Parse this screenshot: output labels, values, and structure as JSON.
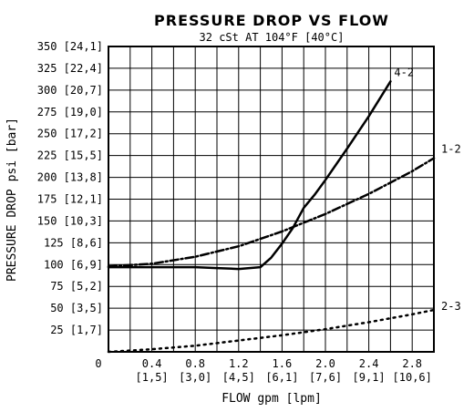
{
  "chart_data": {
    "type": "line",
    "title": "PRESSURE DROP VS FLOW",
    "subtitle": "32 cSt AT 104°F [40°C]",
    "xlabel": "FLOW gpm [lpm]",
    "ylabel": "PRESSURE DROP psi [bar]",
    "xlim": [
      0,
      3.0
    ],
    "ylim": [
      0,
      350
    ],
    "grid": true,
    "x_ticks": [
      {
        "value": 0.4,
        "label": "0.4"
      },
      {
        "value": 0.8,
        "label": "0.8"
      },
      {
        "value": 1.2,
        "label": "1.2"
      },
      {
        "value": 1.6,
        "label": "1.6"
      },
      {
        "value": 2.0,
        "label": "2.0"
      },
      {
        "value": 2.4,
        "label": "2.4"
      },
      {
        "value": 2.8,
        "label": "2.8"
      }
    ],
    "x_origin_label": "0",
    "x_secondary_ticks": [
      {
        "value": 0.4,
        "label": "[1,5]"
      },
      {
        "value": 0.8,
        "label": "[3,0]"
      },
      {
        "value": 1.2,
        "label": "[4,5]"
      },
      {
        "value": 1.6,
        "label": "[6,1]"
      },
      {
        "value": 2.0,
        "label": "[7,6]"
      },
      {
        "value": 2.4,
        "label": "[9,1]"
      },
      {
        "value": 2.8,
        "label": "[10,6]"
      }
    ],
    "y_ticks": [
      {
        "value": 25,
        "label": "25 [1,7]"
      },
      {
        "value": 50,
        "label": "50 [3,5]"
      },
      {
        "value": 75,
        "label": "75 [5,2]"
      },
      {
        "value": 100,
        "label": "100 [6,9]"
      },
      {
        "value": 125,
        "label": "125 [8,6]"
      },
      {
        "value": 150,
        "label": "150 [10,3]"
      },
      {
        "value": 175,
        "label": "175 [12,1]"
      },
      {
        "value": 200,
        "label": "200 [13,8]"
      },
      {
        "value": 225,
        "label": "225 [15,5]"
      },
      {
        "value": 250,
        "label": "250 [17,2]"
      },
      {
        "value": 275,
        "label": "275 [19,0]"
      },
      {
        "value": 300,
        "label": "300 [20,7]"
      },
      {
        "value": 325,
        "label": "325 [22,4]"
      },
      {
        "value": 350,
        "label": "350 [24,1]"
      }
    ],
    "series": [
      {
        "name": "4-2",
        "style": "solid",
        "x": [
          0.0,
          0.4,
          0.8,
          1.0,
          1.2,
          1.4,
          1.5,
          1.6,
          1.7,
          1.8,
          1.9,
          2.0,
          2.2,
          2.4,
          2.6
        ],
        "y": [
          97,
          97,
          97,
          96,
          95,
          97,
          108,
          124,
          142,
          165,
          180,
          197,
          233,
          270,
          310
        ]
      },
      {
        "name": "1-2",
        "style": "dashdot",
        "x": [
          0.0,
          0.4,
          0.8,
          1.2,
          1.6,
          2.0,
          2.4,
          2.8,
          3.0
        ],
        "y": [
          98,
          101,
          109,
          121,
          138,
          158,
          181,
          207,
          222
        ]
      },
      {
        "name": "2-3",
        "style": "dotted",
        "x": [
          0.0,
          0.4,
          0.8,
          1.2,
          1.6,
          2.0,
          2.4,
          2.8,
          3.0
        ],
        "y": [
          0,
          3,
          7,
          13,
          19,
          26,
          34,
          43,
          48
        ]
      }
    ]
  }
}
